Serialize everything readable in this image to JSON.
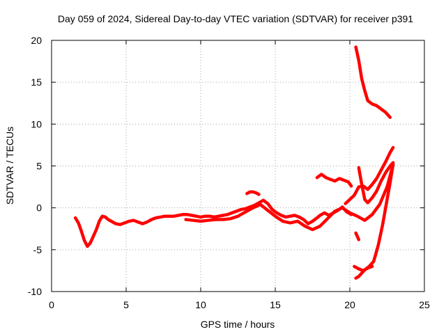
{
  "chart_data": {
    "type": "line",
    "title": "Day 059 of 2024, Sidereal Day-to-day VTEC variation (SDTVAR) for receiver p391",
    "xlabel": "GPS time / hours",
    "ylabel": "SDTVAR / TECUs",
    "xlim": [
      0,
      25
    ],
    "ylim": [
      -10,
      20
    ],
    "xticks": [
      0,
      5,
      10,
      15,
      20,
      25
    ],
    "yticks": [
      -10,
      -5,
      0,
      5,
      10,
      15,
      20
    ],
    "grid": true,
    "legend": "none",
    "color": "#ff0000",
    "series": [
      {
        "x": [
          1.6,
          1.8,
          2.0,
          2.2,
          2.4,
          2.6,
          2.8,
          3.0,
          3.2,
          3.4,
          3.6,
          3.8,
          4.0,
          4.3,
          4.6,
          4.9,
          5.2,
          5.5,
          5.8,
          6.1,
          6.4,
          6.7,
          7.0,
          7.3,
          7.6,
          7.9,
          8.2,
          8.5,
          8.8,
          9.1,
          9.4,
          9.7,
          10.0,
          10.3,
          10.6,
          10.9,
          11.2,
          11.5,
          11.8,
          12.1,
          12.4,
          12.7,
          13.0,
          13.3,
          13.6,
          13.9,
          14.2,
          14.5,
          14.8,
          15.1,
          15.4,
          15.7,
          16.0,
          16.3,
          16.6,
          16.9,
          17.2,
          17.5,
          17.8,
          18.0,
          18.3,
          18.6,
          18.9,
          19.2,
          19.5,
          19.8,
          20.1
        ],
        "y": [
          -1.2,
          -1.8,
          -2.8,
          -3.9,
          -4.6,
          -4.2,
          -3.4,
          -2.6,
          -1.6,
          -1.0,
          -1.1,
          -1.4,
          -1.6,
          -1.9,
          -2.0,
          -1.8,
          -1.6,
          -1.5,
          -1.7,
          -1.9,
          -1.7,
          -1.4,
          -1.2,
          -1.1,
          -1.0,
          -1.0,
          -1.0,
          -0.9,
          -0.8,
          -0.8,
          -0.9,
          -1.0,
          -1.1,
          -1.0,
          -1.0,
          -1.1,
          -1.0,
          -0.9,
          -0.8,
          -0.6,
          -0.4,
          -0.2,
          -0.1,
          0.1,
          0.3,
          0.6,
          0.9,
          0.5,
          -0.2,
          -0.6,
          -0.9,
          -1.1,
          -1.0,
          -0.9,
          -1.1,
          -1.4,
          -1.9,
          -1.6,
          -1.2,
          -0.9,
          -0.6,
          -0.9,
          -0.6,
          -0.3,
          0.1,
          -0.5,
          -0.8
        ]
      },
      {
        "x": [
          9.0,
          9.5,
          10.0,
          10.5,
          11.0,
          11.5,
          12.0,
          12.5,
          13.0,
          13.5,
          14.0,
          14.5,
          15.0,
          15.5,
          16.0,
          16.5,
          17.0,
          17.5,
          18.0,
          18.5,
          19.0,
          19.5,
          20.0,
          20.5,
          21.0,
          21.5,
          22.0,
          22.5,
          22.9
        ],
        "y": [
          -1.4,
          -1.5,
          -1.6,
          -1.5,
          -1.4,
          -1.4,
          -1.3,
          -1.0,
          -0.5,
          0.0,
          0.4,
          -0.3,
          -1.0,
          -1.6,
          -1.8,
          -1.6,
          -2.2,
          -2.6,
          -2.2,
          -1.3,
          -0.4,
          0.0,
          -0.6,
          -1.0,
          -1.5,
          -0.8,
          0.4,
          2.5,
          5.2
        ]
      },
      {
        "x": [
          13.1,
          13.3,
          13.5,
          13.7,
          13.9
        ],
        "y": [
          1.7,
          1.9,
          1.9,
          1.8,
          1.6
        ]
      },
      {
        "x": [
          17.8,
          18.1,
          18.4,
          18.7,
          19.0,
          19.3,
          19.6,
          19.9,
          20.1
        ],
        "y": [
          3.6,
          4.0,
          3.6,
          3.4,
          3.2,
          3.5,
          3.3,
          3.1,
          2.6
        ]
      },
      {
        "x": [
          19.7,
          20.0,
          20.3,
          20.6,
          20.9,
          21.2,
          21.5,
          21.8,
          22.1,
          22.4,
          22.7,
          22.9
        ],
        "y": [
          0.5,
          1.0,
          1.5,
          2.5,
          2.6,
          2.2,
          2.8,
          3.5,
          4.5,
          5.5,
          6.6,
          7.2
        ]
      },
      {
        "x": [
          20.6,
          20.8,
          21.0,
          21.2,
          21.5,
          21.8,
          22.1,
          22.4,
          22.7,
          22.9
        ],
        "y": [
          4.8,
          2.8,
          1.0,
          0.6,
          1.2,
          2.0,
          3.2,
          4.2,
          5.0,
          5.4
        ]
      },
      {
        "x": [
          20.4,
          20.6,
          20.8,
          21.0,
          21.3,
          21.6,
          21.9,
          22.2,
          22.5,
          22.7,
          22.9
        ],
        "y": [
          -8.4,
          -8.2,
          -7.8,
          -7.4,
          -7.0,
          -6.4,
          -4.5,
          -2.0,
          1.0,
          3.0,
          5.2
        ]
      },
      {
        "x": [
          20.3,
          20.6,
          20.9,
          21.2,
          21.5
        ],
        "y": [
          -7.0,
          -7.3,
          -7.5,
          -7.2,
          -7.0
        ]
      },
      {
        "x": [
          20.4,
          20.5,
          20.6
        ],
        "y": [
          -3.0,
          -3.4,
          -3.8
        ]
      },
      {
        "x": [
          20.4,
          20.6,
          20.8,
          21.0,
          21.2,
          21.5,
          21.8,
          22.1,
          22.4,
          22.7
        ],
        "y": [
          19.2,
          17.6,
          15.4,
          14.0,
          12.8,
          12.4,
          12.2,
          11.8,
          11.4,
          10.8
        ]
      }
    ]
  }
}
